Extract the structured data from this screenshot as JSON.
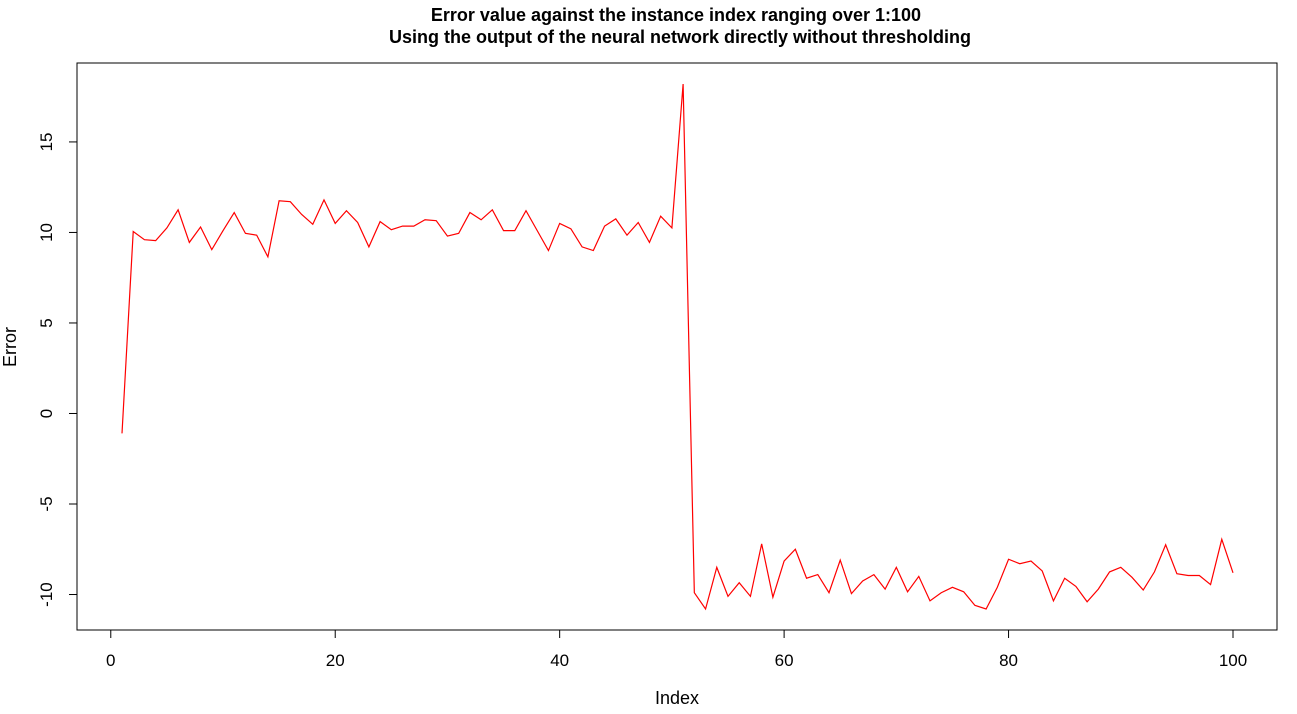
{
  "chart_data": {
    "type": "line",
    "title": "Error value against the instance index ranging over 1:100",
    "subtitle": "Using the output of the neural network directly without thresholding",
    "xlabel": "Index",
    "ylabel": "Error",
    "xlim": [
      1,
      100
    ],
    "ylim": [
      -10.8,
      18.2
    ],
    "grid": false,
    "x_ticks": [
      0,
      20,
      40,
      60,
      80,
      100
    ],
    "y_ticks": [
      -10,
      -5,
      0,
      5,
      10,
      15
    ],
    "line_color": "#ff0000",
    "series": [
      {
        "x": [
          1,
          2,
          3,
          4,
          5,
          6,
          7,
          8,
          9,
          10,
          11,
          12,
          13,
          14,
          15,
          16,
          17,
          18,
          19,
          20,
          21,
          22,
          23,
          24,
          25,
          26,
          27,
          28,
          29,
          30,
          31,
          32,
          33,
          34,
          35,
          36,
          37,
          38,
          39,
          40,
          41,
          42,
          43,
          44,
          45,
          46,
          47,
          48,
          49,
          50,
          51,
          52,
          53,
          54,
          55,
          56,
          57,
          58,
          59,
          60,
          61,
          62,
          63,
          64,
          65,
          66,
          67,
          68,
          69,
          70,
          71,
          72,
          73,
          74,
          75,
          76,
          77,
          78,
          79,
          80,
          81,
          82,
          83,
          84,
          85,
          86,
          87,
          88,
          89,
          90,
          91,
          92,
          93,
          94,
          95,
          96,
          97,
          98,
          99,
          100
        ],
        "values": [
          -1.1,
          10.05,
          9.6,
          9.55,
          10.25,
          11.25,
          9.45,
          10.3,
          9.05,
          10.1,
          11.1,
          9.95,
          9.85,
          8.65,
          11.75,
          11.7,
          11.0,
          10.45,
          11.8,
          10.5,
          11.2,
          10.55,
          9.2,
          10.6,
          10.15,
          10.35,
          10.35,
          10.7,
          10.65,
          9.8,
          9.95,
          11.1,
          10.7,
          11.25,
          10.1,
          10.1,
          11.2,
          10.1,
          9.0,
          10.5,
          10.2,
          9.2,
          9.0,
          10.35,
          10.75,
          9.85,
          10.55,
          9.45,
          10.9,
          10.25,
          18.2,
          -9.9,
          -10.8,
          -8.5,
          -10.1,
          -9.35,
          -10.1,
          -7.2,
          -10.15,
          -8.15,
          -7.5,
          -9.1,
          -8.9,
          -9.9,
          -8.1,
          -9.95,
          -9.25,
          -8.9,
          -9.7,
          -8.5,
          -9.85,
          -9.0,
          -10.35,
          -9.9,
          -9.6,
          -9.85,
          -10.6,
          -10.8,
          -9.6,
          -8.05,
          -8.3,
          -8.15,
          -8.7,
          -10.35,
          -9.1,
          -9.55,
          -10.4,
          -9.7,
          -8.75,
          -8.5,
          -9.05,
          -9.75,
          -8.75,
          -7.25,
          -8.85,
          -8.95,
          -8.95,
          -9.45,
          -6.95,
          -8.8
        ]
      }
    ]
  }
}
